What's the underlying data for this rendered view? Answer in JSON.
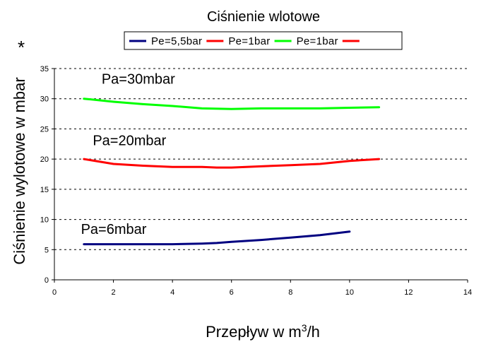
{
  "marker": "*",
  "chart_data": {
    "type": "line",
    "title": "Ciśnienie wlotowe",
    "xlabel": {
      "main": "Przepływ w m",
      "sup": "3",
      "tail": "/h"
    },
    "ylabel": "Ciśnienie wylotowe w mbar",
    "xlim": [
      0,
      14
    ],
    "ylim": [
      0,
      35
    ],
    "xticks": [
      0,
      2,
      4,
      6,
      8,
      10,
      12,
      14
    ],
    "yticks": [
      0,
      5,
      10,
      15,
      20,
      25,
      30,
      35
    ],
    "grid": "horizontal dashed",
    "legend_position": "top",
    "legend": [
      {
        "label": "Pe=5,5bar",
        "color": "#000080"
      },
      {
        "label": "Pe=1bar",
        "color": "#ff0000"
      },
      {
        "label": "Pe=1bar",
        "color": "#00ff00"
      },
      {
        "label": "",
        "color": "#ff0000"
      }
    ],
    "series": [
      {
        "color": "#000080",
        "x": [
          1,
          2,
          3,
          4,
          5,
          5.5,
          6,
          7,
          8,
          9,
          10
        ],
        "y": [
          5.9,
          5.9,
          5.9,
          5.9,
          6.0,
          6.1,
          6.3,
          6.6,
          7.0,
          7.4,
          8.0
        ]
      },
      {
        "color": "#ff0000",
        "x": [
          1,
          2,
          3,
          4,
          5,
          5.5,
          6,
          7,
          8,
          9,
          10,
          11
        ],
        "y": [
          20.0,
          19.2,
          18.9,
          18.7,
          18.7,
          18.6,
          18.6,
          18.8,
          19.0,
          19.2,
          19.7,
          20.0
        ]
      },
      {
        "color": "#00ff00",
        "x": [
          1,
          2,
          3,
          4,
          5,
          6,
          7,
          8,
          9,
          10,
          11
        ],
        "y": [
          30.0,
          29.5,
          29.1,
          28.8,
          28.4,
          28.3,
          28.4,
          28.4,
          28.4,
          28.5,
          28.6
        ]
      }
    ],
    "annotations": [
      {
        "text": "Pa=30mbar",
        "x": 1.6,
        "y": 32.5
      },
      {
        "text": "Pa=20mbar",
        "x": 1.3,
        "y": 22.3
      },
      {
        "text": "Pa=6mbar",
        "x": 0.9,
        "y": 7.6
      }
    ]
  }
}
